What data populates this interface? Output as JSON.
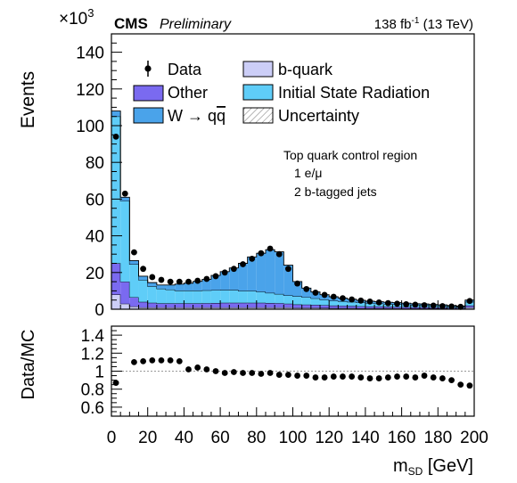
{
  "header": {
    "experiment": "CMS",
    "status": "Preliminary",
    "lumi_text": "138 fb",
    "lumi_exp": "-1",
    "energy_text": " (13 TeV)",
    "multiplier_text": "×10",
    "multiplier_exp": "3"
  },
  "annotations": {
    "region_line1": "Top quark control region",
    "region_line2": "1 e/μ",
    "region_line3": "2 b-tagged jets"
  },
  "legend": {
    "data": "Data",
    "other": "Other",
    "wqq_prefix": "W → q",
    "wqq_suffix": "q",
    "bquark": "b-quark",
    "isr": "Initial State Radiation",
    "uncertainty": "Uncertainty",
    "placement": "top"
  },
  "colors": {
    "bquark": "#cccef7",
    "other": "#7a6af0",
    "isr": "#5fcdf8",
    "wqq": "#4aa3ea",
    "data": "#000000",
    "uncertainty_hatch": "#777777"
  },
  "chart_data": [
    {
      "type": "bar",
      "subtype": "stacked-histogram",
      "xlabel_main": "m",
      "xlabel_sub": "SD",
      "xlabel_unit": " [GeV]",
      "ylabel": "Events",
      "ylim": [
        0,
        150
      ],
      "y_multiplier": 1000,
      "xlim": [
        0,
        200
      ],
      "xticks": [
        0,
        20,
        40,
        60,
        80,
        100,
        120,
        140,
        160,
        180,
        200
      ],
      "yticks": [
        0,
        20,
        40,
        60,
        80,
        100,
        120,
        140
      ],
      "bin_edges": [
        0,
        5,
        10,
        15,
        20,
        25,
        30,
        35,
        40,
        45,
        50,
        55,
        60,
        65,
        70,
        75,
        80,
        85,
        90,
        95,
        100,
        105,
        110,
        115,
        120,
        125,
        130,
        135,
        140,
        145,
        150,
        155,
        160,
        165,
        170,
        175,
        180,
        185,
        190,
        195,
        200
      ],
      "series": [
        {
          "name": "b-quark",
          "values": [
            8,
            3,
            1.5,
            1,
            1,
            1,
            1,
            1,
            1,
            1,
            1,
            1,
            1,
            1,
            1,
            1,
            1,
            1,
            1,
            1,
            0.8,
            0.8,
            0.8,
            0.7,
            0.6,
            0.6,
            0.6,
            0.5,
            0.5,
            0.5,
            0.5,
            0.5,
            0.4,
            0.4,
            0.4,
            0.4,
            0.4,
            0.3,
            0.3,
            1
          ]
        },
        {
          "name": "Other",
          "values": [
            17,
            12,
            5,
            3,
            2.5,
            2.2,
            2.2,
            2.2,
            2.2,
            2.2,
            2.3,
            2.4,
            2.5,
            2.5,
            2.5,
            2.5,
            2.5,
            2.4,
            2.3,
            2,
            1.8,
            1.7,
            1.6,
            1.5,
            1.4,
            1.3,
            1.2,
            1.1,
            1,
            1,
            0.9,
            0.8,
            0.8,
            0.7,
            0.7,
            0.6,
            0.6,
            0.5,
            0.5,
            1
          ]
        },
        {
          "name": "Initial State Radiation",
          "values": [
            80,
            44,
            18,
            12,
            9,
            8,
            7.5,
            7,
            7,
            7,
            7,
            7,
            7,
            7,
            6.5,
            6.5,
            6,
            5.5,
            5,
            4.5,
            4.5,
            4,
            3.5,
            3,
            2.6,
            2.4,
            2.2,
            2,
            1.8,
            1.6,
            1.5,
            1.4,
            1.3,
            1.2,
            1.1,
            1,
            0.9,
            0.8,
            0.6,
            2
          ]
        },
        {
          "name": "W → qq̄",
          "values": [
            3,
            2,
            2,
            2,
            2,
            2,
            2.5,
            3.5,
            4,
            5,
            6,
            8,
            10,
            12,
            15,
            18.5,
            21,
            23.5,
            23,
            16.5,
            8,
            5,
            3.5,
            2.7,
            2.2,
            1.8,
            1.5,
            1.3,
            1.1,
            1,
            0.9,
            0.9,
            0.8,
            0.7,
            0.7,
            0.6,
            0.5,
            0.4,
            0.3,
            1
          ]
        }
      ],
      "data_points": {
        "name": "Data",
        "x": [
          2.5,
          7.5,
          12.5,
          17.5,
          22.5,
          27.5,
          32.5,
          37.5,
          42.5,
          47.5,
          52.5,
          57.5,
          62.5,
          67.5,
          72.5,
          77.5,
          82.5,
          87.5,
          92.5,
          97.5,
          102.5,
          107.5,
          112.5,
          117.5,
          122.5,
          127.5,
          132.5,
          137.5,
          142.5,
          147.5,
          152.5,
          157.5,
          162.5,
          167.5,
          172.5,
          177.5,
          182.5,
          187.5,
          192.5,
          197.5
        ],
        "y": [
          94,
          63,
          31,
          22,
          17.5,
          16,
          15,
          15,
          15,
          15.5,
          16.5,
          18,
          20,
          22,
          24.5,
          27.5,
          30.5,
          33,
          30,
          22,
          14,
          11,
          9,
          7.8,
          6.8,
          6,
          5.3,
          4.7,
          4.2,
          3.7,
          3.3,
          3,
          2.7,
          2.5,
          2.2,
          2,
          1.7,
          1.5,
          1.3,
          4.5
        ]
      }
    },
    {
      "type": "scatter",
      "subtype": "ratio",
      "ylabel": "Data/MC",
      "ylim": [
        0.5,
        1.5
      ],
      "xlim": [
        0,
        200
      ],
      "yticks": [
        0.6,
        0.8,
        1,
        1.2,
        1.4
      ],
      "reference_line": 1,
      "x": [
        2.5,
        12.5,
        17.5,
        22.5,
        27.5,
        32.5,
        37.5,
        42.5,
        47.5,
        52.5,
        57.5,
        62.5,
        67.5,
        72.5,
        77.5,
        82.5,
        87.5,
        92.5,
        97.5,
        102.5,
        107.5,
        112.5,
        117.5,
        122.5,
        127.5,
        132.5,
        137.5,
        142.5,
        147.5,
        152.5,
        157.5,
        162.5,
        167.5,
        172.5,
        177.5,
        182.5,
        187.5,
        192.5,
        197.5
      ],
      "y": [
        0.87,
        1.1,
        1.11,
        1.12,
        1.12,
        1.12,
        1.11,
        1.02,
        1.04,
        1.02,
        1.0,
        0.98,
        0.99,
        0.98,
        0.98,
        0.97,
        0.98,
        0.96,
        0.96,
        0.95,
        0.95,
        0.93,
        0.93,
        0.94,
        0.94,
        0.94,
        0.93,
        0.92,
        0.92,
        0.93,
        0.94,
        0.94,
        0.93,
        0.95,
        0.93,
        0.92,
        0.9,
        0.85,
        0.84
      ]
    }
  ]
}
